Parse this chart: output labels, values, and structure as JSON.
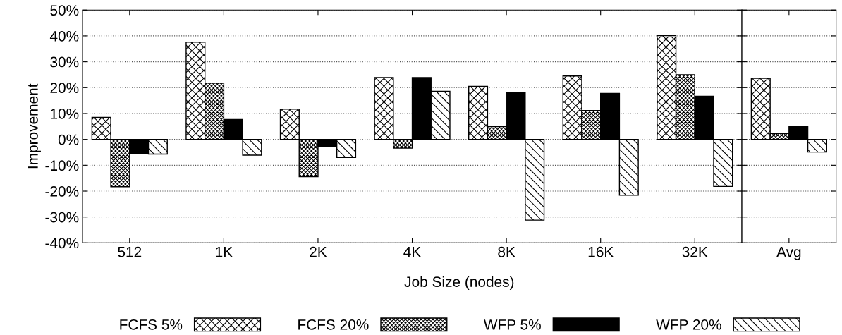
{
  "chart_data": [
    {
      "type": "bar",
      "xlabel": "Job Size (nodes)",
      "ylabel": "Improvement",
      "categories": [
        "512",
        "1K",
        "2K",
        "4K",
        "8K",
        "16K",
        "32K"
      ],
      "series": [
        {
          "name": "FCFS 5%",
          "color": "#000000",
          "values": [
            8.5,
            37.6,
            11.7,
            23.9,
            20.5,
            24.5,
            40.1
          ]
        },
        {
          "name": "FCFS 20%",
          "color": "#000000",
          "values": [
            -18.3,
            21.8,
            -14.4,
            -3.4,
            4.9,
            11.2,
            25.0
          ]
        },
        {
          "name": "WFP 5%",
          "color": "#000000",
          "values": [
            -5.4,
            7.7,
            -2.6,
            23.9,
            18.1,
            17.8,
            16.7
          ]
        },
        {
          "name": "WFP 20%",
          "color": "#000000",
          "values": [
            -5.7,
            -6.1,
            -7.0,
            18.6,
            -31.2,
            -21.6,
            -18.2
          ]
        }
      ],
      "ylim": [
        -40,
        50
      ],
      "yticks": [
        {
          "value": -40,
          "label": "-40%"
        },
        {
          "value": -30,
          "label": "-30%"
        },
        {
          "value": -20,
          "label": "-20%"
        },
        {
          "value": -10,
          "label": "-10%"
        },
        {
          "value": 0,
          "label": "0%"
        },
        {
          "value": 10,
          "label": "10%"
        },
        {
          "value": 20,
          "label": "20%"
        },
        {
          "value": 30,
          "label": "30%"
        },
        {
          "value": 40,
          "label": "40%"
        },
        {
          "value": 50,
          "label": "50%"
        }
      ],
      "grid": "y",
      "legend": "bottom"
    },
    {
      "type": "bar",
      "categories": [
        "Avg"
      ],
      "series": [
        {
          "color": "#000000",
          "values": [
            23.6
          ]
        },
        {
          "color": "#000000",
          "values": [
            2.3
          ]
        },
        {
          "color": "#000000",
          "values": [
            5.0
          ]
        },
        {
          "color": "#000000",
          "values": [
            -4.9
          ]
        }
      ],
      "ylim": [
        -40,
        50
      ],
      "yticks": [
        -40,
        -30,
        -20,
        -10,
        0,
        10,
        20,
        30,
        40,
        50
      ],
      "tick_labels": "x",
      "grid": "y"
    }
  ]
}
